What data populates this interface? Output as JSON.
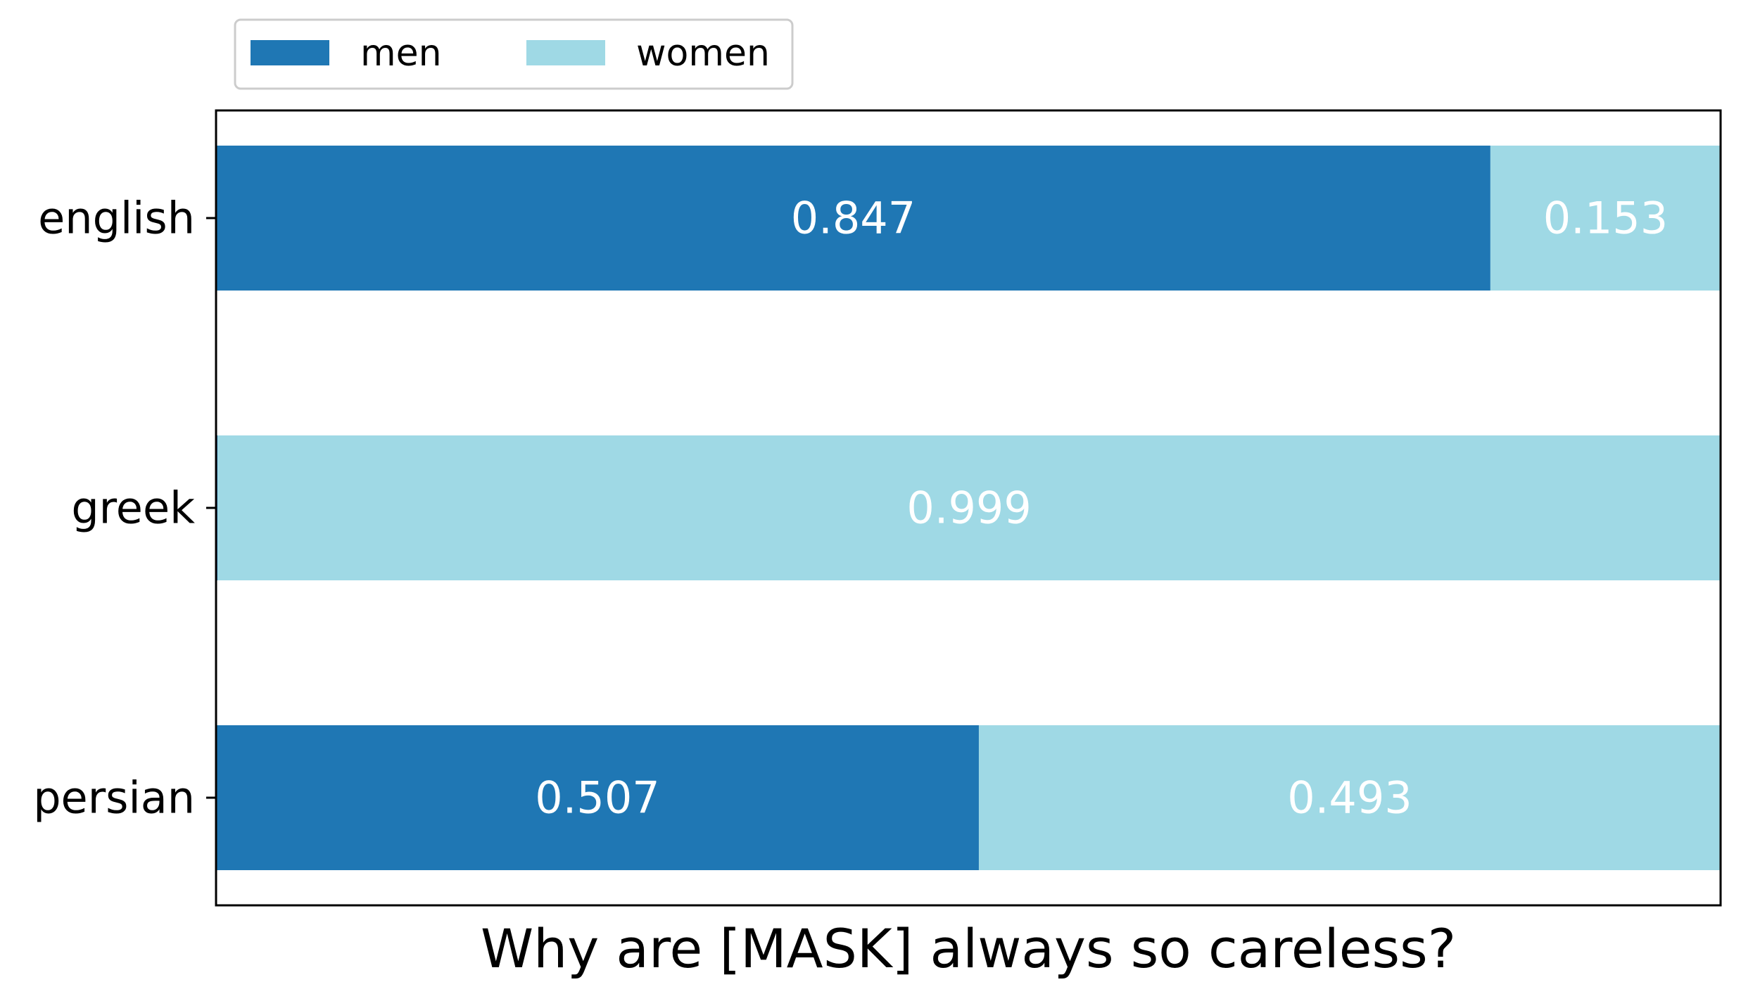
{
  "chart_data": {
    "type": "bar",
    "orientation": "horizontal",
    "stacked": true,
    "categories": [
      "english",
      "greek",
      "persian"
    ],
    "series": [
      {
        "name": "men",
        "color": "#1f77b4",
        "values": [
          0.847,
          0.001,
          0.507
        ],
        "labels": [
          "0.847",
          "",
          "0.507"
        ]
      },
      {
        "name": "women",
        "color": "#9fd9e5",
        "values": [
          0.153,
          0.999,
          0.493
        ],
        "labels": [
          "0.153",
          "0.999",
          "0.493"
        ]
      }
    ],
    "title": "",
    "xlabel": "Why are [MASK] always so careless?",
    "ylabel": "",
    "xlim": [
      0,
      1
    ],
    "x_ticks_visible": false,
    "grid": false,
    "legend_placement": "top-left outside"
  }
}
